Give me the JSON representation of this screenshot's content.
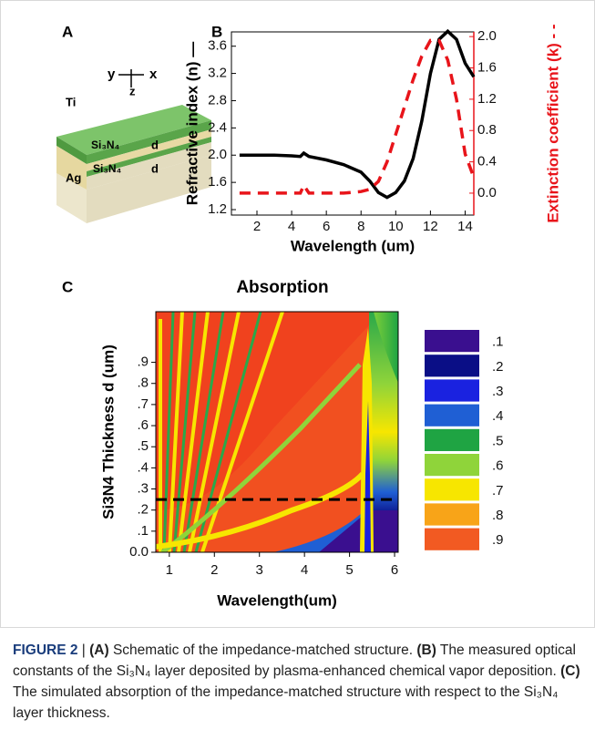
{
  "schematic": {
    "label": "A",
    "axes": [
      "y",
      "x",
      "z"
    ],
    "top": "Ti",
    "dielectric": "Si₃N₄",
    "mirror": "Ag",
    "thickness": "d"
  },
  "chart_data": [
    {
      "type": "line",
      "panel_label": "B",
      "x_label": "Wavelength (um)",
      "y_label": "Refractive index (n) —",
      "y2_label": "Extinction coefficient (k) - -",
      "x": [
        1,
        2,
        3,
        4,
        4.5,
        4.7,
        5,
        6,
        7,
        8,
        8.5,
        9,
        9.5,
        10,
        10.5,
        11,
        11.5,
        12,
        12.5,
        13,
        13.5,
        14,
        14.5
      ],
      "series": [
        {
          "color": "#000000",
          "style": "solid",
          "axis": "y",
          "values": [
            2.0,
            2.0,
            2.0,
            1.99,
            1.98,
            2.03,
            1.98,
            1.93,
            1.86,
            1.75,
            1.62,
            1.45,
            1.38,
            1.45,
            1.62,
            1.95,
            2.5,
            3.2,
            3.7,
            3.82,
            3.7,
            3.35,
            3.15
          ]
        },
        {
          "color": "#e8141a",
          "style": "dashed",
          "axis": "y2",
          "values": [
            0,
            0,
            0,
            0,
            0,
            0.1,
            0,
            0,
            0,
            0.02,
            0.05,
            0.15,
            0.4,
            0.75,
            1.1,
            1.45,
            1.75,
            1.95,
            1.95,
            1.7,
            1.2,
            0.5,
            0.2
          ]
        }
      ],
      "xlim": [
        0.53,
        14.5
      ],
      "xticks": [
        2,
        4,
        6,
        8,
        10,
        12,
        14
      ],
      "ylim": [
        1.12,
        3.81
      ],
      "yticks": [
        1.2,
        1.6,
        {
          "value": 2.0,
          "label": "2.0"
        },
        2.4,
        2.8,
        3.2,
        3.6
      ],
      "y2lim": [
        -0.28,
        2.06
      ],
      "y2ticks": [
        {
          "value": 0.0,
          "label": "0.0"
        },
        0.4,
        0.8,
        1.2,
        1.6,
        {
          "value": 2.0,
          "label": "2.0"
        }
      ],
      "y2_color": "#e8141a"
    },
    {
      "type": "contour",
      "panel_label": "C",
      "title": "Absorption",
      "x_label": "Wavelength(um)",
      "y_label": "Si3N4 Thickness d (um)",
      "xlim": [
        0.7,
        6.08
      ],
      "xticks": [
        1,
        2,
        3,
        4,
        5,
        6
      ],
      "ylim": [
        0,
        1.14
      ],
      "yticks": [
        {
          "value": 0,
          "label": "0.0"
        },
        {
          "value": 0.1,
          "label": ".1"
        },
        {
          "value": 0.2,
          "label": ".2"
        },
        {
          "value": 0.3,
          "label": ".3"
        },
        {
          "value": 0.4,
          "label": ".4"
        },
        {
          "value": 0.5,
          "label": ".5"
        },
        {
          "value": 0.6,
          "label": ".6"
        },
        {
          "value": 0.7,
          "label": ".7"
        },
        {
          "value": 0.8,
          "label": ".8"
        },
        {
          "value": 0.9,
          "label": ".9"
        }
      ],
      "marker_d": 0.25,
      "colorbar": {
        "labels": [
          ".1",
          ".2",
          ".3",
          ".4",
          ".5",
          ".6",
          ".7",
          ".8",
          ".9"
        ],
        "colors": [
          "#3a0f8f",
          "#0a0e86",
          "#1a22e0",
          "#1f5fd4",
          "#1fa443",
          "#8fd43a",
          "#f7e600",
          "#f8a418",
          "#f25a22"
        ]
      }
    }
  ],
  "caption": [
    "FIGURE 2",
    " | ",
    "(A)",
    " Schematic of the impedance-matched structure. ",
    "(B)",
    " The measured optical constants of the Si₃N₄ layer deposited by plasma-enhanced chemical vapor deposition. ",
    "(C)",
    " The simulated absorption of the impedance-matched structure with respect to the Si₃N₄ layer thickness."
  ]
}
